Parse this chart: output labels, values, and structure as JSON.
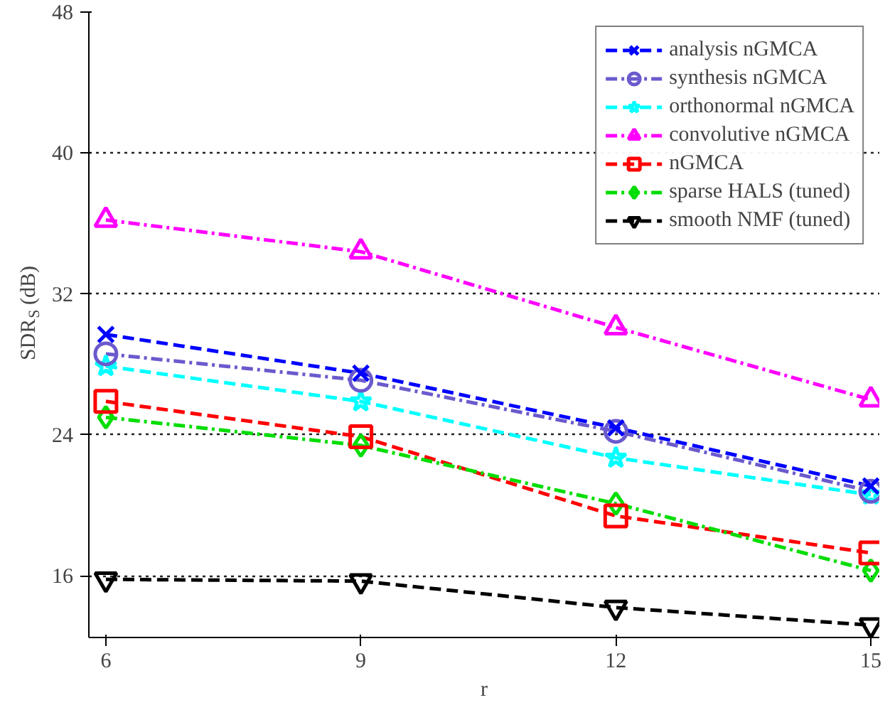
{
  "chart_data": {
    "type": "line",
    "xlabel": "r",
    "ylabel": "SDR$_{S}$ (dB)",
    "x": [
      6,
      9,
      12,
      15
    ],
    "xlim": [
      5.8,
      15.1
    ],
    "xticks": [
      6,
      9,
      12,
      15
    ],
    "ylim": [
      12.5,
      48
    ],
    "yticks": [
      16,
      24,
      32,
      40,
      48
    ],
    "grid": "y",
    "legend": "top right",
    "series": [
      {
        "name": "analysis nGMCA",
        "color": "#0000ff",
        "marker": "cross",
        "line_style": "dashed",
        "values": [
          29.7,
          27.5,
          24.4,
          21.1
        ]
      },
      {
        "name": "synthesis nGMCA",
        "color": "#6a5acd",
        "marker": "circle",
        "line_style": "dashdot",
        "values": [
          28.6,
          27.1,
          24.2,
          20.8
        ]
      },
      {
        "name": "orthonormal nGMCA",
        "color": "#00ffff",
        "marker": "star",
        "line_style": "dashed",
        "values": [
          27.9,
          25.9,
          22.7,
          20.6
        ]
      },
      {
        "name": "convolutive nGMCA",
        "color": "#ff00ff",
        "marker": "triangle",
        "line_style": "dashdot",
        "values": [
          36.2,
          34.4,
          30.1,
          26.0
        ]
      },
      {
        "name": "nGMCA",
        "color": "#ff0000",
        "marker": "square",
        "line_style": "dashed",
        "values": [
          25.9,
          23.9,
          19.4,
          17.3
        ]
      },
      {
        "name": "sparse HALS (tuned)",
        "color": "#00dd00",
        "marker": "diamond",
        "line_style": "dashdot",
        "values": [
          25.0,
          23.4,
          20.1,
          16.3
        ]
      },
      {
        "name": "smooth NMF (tuned)",
        "color": "#000000",
        "marker": "triangle",
        "line_style": "dashed",
        "values": [
          15.8,
          15.7,
          14.2,
          13.2
        ]
      }
    ]
  }
}
